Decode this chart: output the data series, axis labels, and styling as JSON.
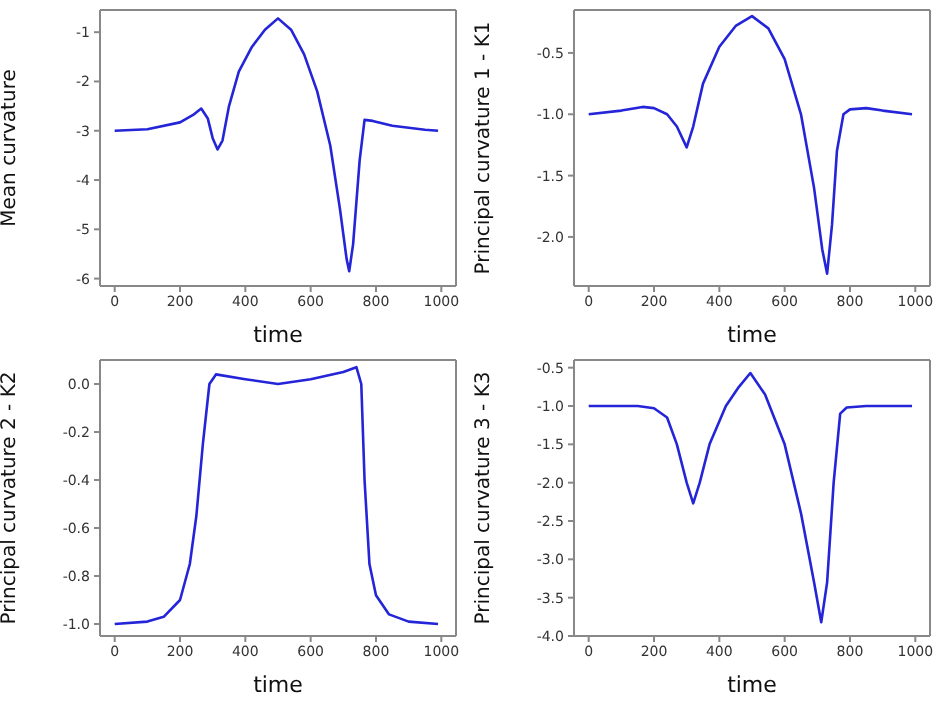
{
  "chart_data": [
    {
      "type": "line",
      "xlabel": "time",
      "ylabel": "Mean curvature",
      "color": "#2424d8",
      "xlim": [
        -45,
        1045
      ],
      "ylim": [
        -6.15,
        -0.55
      ],
      "xticks": [
        0,
        200,
        400,
        600,
        800,
        1000
      ],
      "yticks": [
        -6,
        -5,
        -4,
        -3,
        -2,
        -1
      ],
      "x": [
        0,
        100,
        200,
        240,
        265,
        285,
        300,
        315,
        330,
        350,
        380,
        420,
        460,
        500,
        540,
        580,
        620,
        660,
        690,
        710,
        718,
        730,
        750,
        765,
        790,
        850,
        950,
        990
      ],
      "values": [
        -3,
        -2.97,
        -2.83,
        -2.68,
        -2.55,
        -2.75,
        -3.15,
        -3.38,
        -3.2,
        -2.5,
        -1.8,
        -1.3,
        -0.95,
        -0.72,
        -0.95,
        -1.45,
        -2.2,
        -3.3,
        -4.6,
        -5.6,
        -5.85,
        -5.3,
        -3.6,
        -2.78,
        -2.8,
        -2.9,
        -2.98,
        -3
      ]
    },
    {
      "type": "line",
      "xlabel": "time",
      "ylabel": "Principal curvature 1 - K1",
      "color": "#2424d8",
      "xlim": [
        -45,
        1045
      ],
      "ylim": [
        -2.4,
        -0.15
      ],
      "xticks": [
        0,
        200,
        400,
        600,
        800,
        1000
      ],
      "yticks": [
        {
          "value": -2,
          "label": "-2.0"
        },
        -1.5,
        {
          "value": -1,
          "label": "-1.0"
        },
        -0.5
      ],
      "x": [
        0,
        100,
        165,
        200,
        240,
        270,
        300,
        320,
        350,
        400,
        450,
        500,
        550,
        600,
        650,
        690,
        715,
        730,
        745,
        760,
        780,
        800,
        850,
        900,
        990
      ],
      "values": [
        -1.0,
        -0.97,
        -0.94,
        -0.95,
        -1.0,
        -1.1,
        -1.27,
        -1.1,
        -0.75,
        -0.45,
        -0.28,
        -0.2,
        -0.3,
        -0.55,
        -1.0,
        -1.6,
        -2.1,
        -2.3,
        -1.9,
        -1.3,
        -1.0,
        -0.96,
        -0.95,
        -0.97,
        -1.0
      ]
    },
    {
      "type": "line",
      "xlabel": "time",
      "ylabel": "Principal curvature 2 - K2",
      "color": "#2424d8",
      "xlim": [
        -45,
        1045
      ],
      "ylim": [
        -1.05,
        0.1
      ],
      "xticks": [
        0,
        200,
        400,
        600,
        800,
        1000
      ],
      "yticks": [
        {
          "value": -1,
          "label": "-1.0"
        },
        -0.8,
        -0.6,
        -0.4,
        -0.2,
        {
          "value": 0,
          "label": "0.0"
        }
      ],
      "x": [
        0,
        100,
        150,
        200,
        230,
        250,
        270,
        290,
        310,
        400,
        500,
        600,
        700,
        740,
        755,
        765,
        780,
        800,
        840,
        900,
        990
      ],
      "values": [
        -1,
        -0.99,
        -0.97,
        -0.9,
        -0.75,
        -0.55,
        -0.25,
        0.0,
        0.04,
        0.02,
        0.0,
        0.02,
        0.05,
        0.07,
        0.0,
        -0.4,
        -0.75,
        -0.88,
        -0.96,
        -0.99,
        -1
      ]
    },
    {
      "type": "line",
      "xlabel": "time",
      "ylabel": "Principal curvature 3 - K3",
      "color": "#2424d8",
      "xlim": [
        -45,
        1045
      ],
      "ylim": [
        -4.0,
        -0.4
      ],
      "xticks": [
        0,
        200,
        400,
        600,
        800,
        1000
      ],
      "yticks": [
        {
          "value": -4,
          "label": "-4.0"
        },
        -3.5,
        {
          "value": -3,
          "label": "-3.0"
        },
        -2.5,
        {
          "value": -2,
          "label": "-2.0"
        },
        -1.5,
        {
          "value": -1,
          "label": "-1.0"
        },
        -0.5
      ],
      "x": [
        0,
        150,
        200,
        240,
        270,
        300,
        320,
        340,
        370,
        420,
        460,
        495,
        540,
        600,
        650,
        690,
        712,
        730,
        750,
        770,
        790,
        850,
        990
      ],
      "values": [
        -1,
        -1.0,
        -1.03,
        -1.15,
        -1.5,
        -2.0,
        -2.27,
        -2.0,
        -1.5,
        -1.0,
        -0.75,
        -0.57,
        -0.85,
        -1.5,
        -2.4,
        -3.3,
        -3.82,
        -3.3,
        -2.0,
        -1.1,
        -1.02,
        -1.0,
        -1
      ]
    }
  ]
}
